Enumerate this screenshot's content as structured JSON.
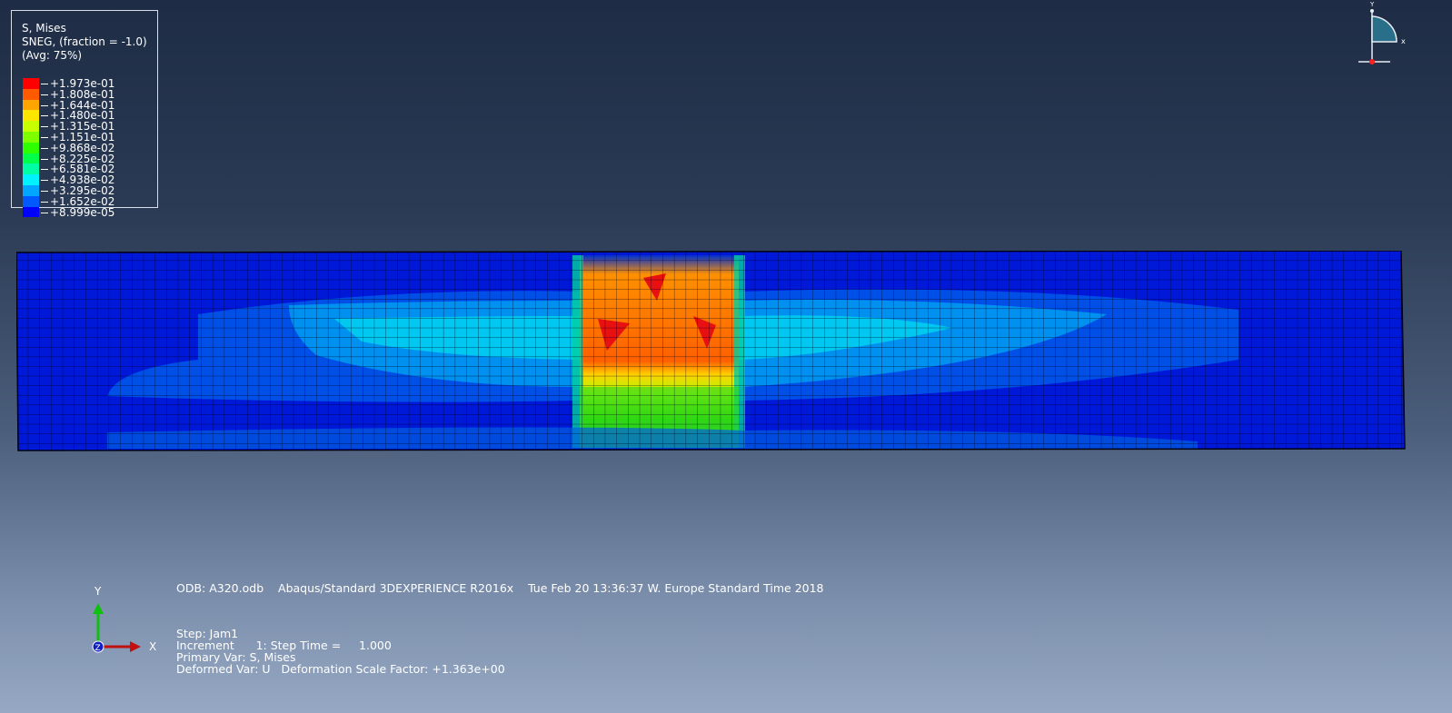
{
  "legend": {
    "title_line1": "S, Mises",
    "title_line2": "SNEG, (fraction = -1.0)",
    "title_line3": "(Avg: 75%)",
    "entries": [
      {
        "value": "+1.973e-01",
        "color": "#ff0000"
      },
      {
        "value": "+1.808e-01",
        "color": "#ff5a00"
      },
      {
        "value": "+1.644e-01",
        "color": "#ffa500"
      },
      {
        "value": "+1.480e-01",
        "color": "#ffe600"
      },
      {
        "value": "+1.315e-01",
        "color": "#c8ff00"
      },
      {
        "value": "+1.151e-01",
        "color": "#7dff00"
      },
      {
        "value": "+9.868e-02",
        "color": "#2eff00"
      },
      {
        "value": "+8.225e-02",
        "color": "#00ff4a"
      },
      {
        "value": "+6.581e-02",
        "color": "#00ffa5"
      },
      {
        "value": "+4.938e-02",
        "color": "#00f2ff"
      },
      {
        "value": "+3.295e-02",
        "color": "#00a6ff"
      },
      {
        "value": "+1.652e-02",
        "color": "#005aff"
      },
      {
        "value": "+8.999e-05",
        "color": "#0000ff"
      }
    ],
    "last_value": ""
  },
  "info": {
    "odb_line": "ODB: A320.odb    Abaqus/Standard 3DEXPERIENCE R2016x    Tue Feb 20 13:36:37 W. Europe Standard Time 2018",
    "step": "Step: Jam1",
    "increment": "Increment      1: Step Time =     1.000",
    "primary_var": "Primary Var: S, Mises",
    "deformed_var": "Deformed Var: U   Deformation Scale Factor: +1.363e+00"
  },
  "triad": {
    "x_label": "X",
    "y_label": "Y",
    "z_label": "Z"
  },
  "viewcube": {
    "x_label": "x",
    "y_label": "Y"
  }
}
